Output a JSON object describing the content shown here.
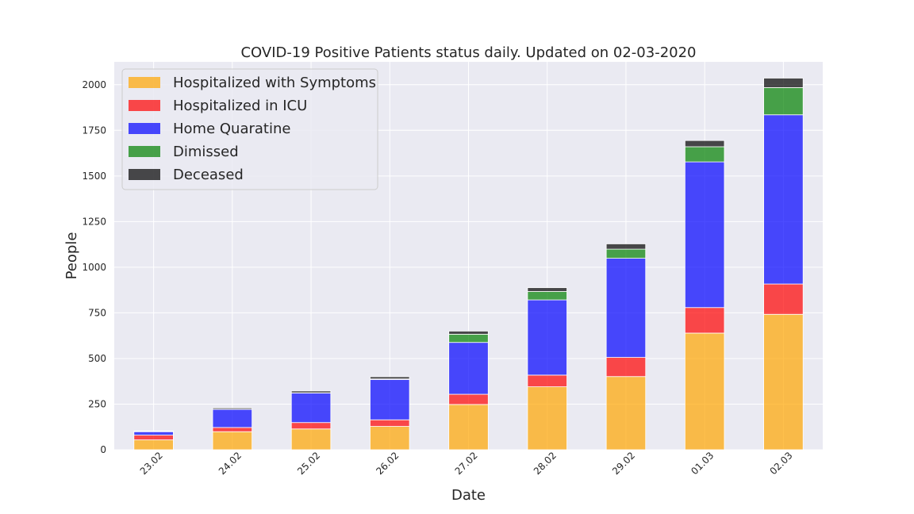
{
  "chart_data": {
    "type": "bar",
    "stacked": true,
    "title": "COVID-19 Positive Patients status daily. Updated on 02-03-2020",
    "xlabel": "Date",
    "ylabel": "People",
    "categories": [
      "23.02",
      "24.02",
      "25.02",
      "26.02",
      "27.02",
      "28.02",
      "29.02",
      "01.03",
      "02.03"
    ],
    "ylim": [
      0,
      2125
    ],
    "yticks": [
      0,
      250,
      500,
      750,
      1000,
      1250,
      1500,
      1750,
      2000
    ],
    "grid": true,
    "legend_position": "top-left",
    "series": [
      {
        "name": "Hospitalized with Symptoms",
        "color": "#FFA500",
        "values": [
          54,
          99,
          114,
          128,
          248,
          345,
          401,
          639,
          742
        ]
      },
      {
        "name": "Hospitalized in ICU",
        "color": "#FF0000",
        "values": [
          26,
          23,
          35,
          36,
          56,
          64,
          105,
          140,
          166
        ]
      },
      {
        "name": "Home Quaratine",
        "color": "#0000FF",
        "values": [
          19,
          99,
          162,
          221,
          284,
          412,
          543,
          798,
          927
        ]
      },
      {
        "name": "Dimissed",
        "color": "#008000",
        "values": [
          1,
          1,
          1,
          3,
          45,
          46,
          50,
          83,
          149
        ]
      },
      {
        "name": "Deceased",
        "color": "#000000",
        "values": [
          3,
          7,
          10,
          12,
          17,
          21,
          29,
          34,
          52
        ]
      }
    ]
  }
}
